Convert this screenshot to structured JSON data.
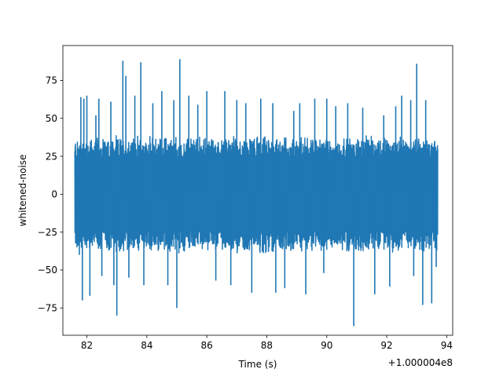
{
  "chart_data": {
    "type": "line",
    "title": "",
    "xlabel": "Time (s)",
    "ylabel": "whitened-noise",
    "x_offset_label": "+1.000004e8",
    "xlim": [
      81.2,
      94.2
    ],
    "ylim": [
      -93,
      98
    ],
    "x_ticks": [
      82,
      84,
      86,
      88,
      90,
      92,
      94
    ],
    "x_tick_labels": [
      "82",
      "84",
      "86",
      "88",
      "90",
      "92",
      "94"
    ],
    "y_ticks": [
      75,
      50,
      25,
      0,
      -25,
      -50,
      -75
    ],
    "y_tick_labels": [
      "75",
      "50",
      "25",
      "0",
      "−25",
      "−50",
      "−75"
    ],
    "grid": false,
    "series": [
      {
        "color": "#1f77b4",
        "x_start": 81.6,
        "x_end": 93.7,
        "band_upper": 35,
        "band_lower": -35,
        "peaks": [
          {
            "x": 81.7,
            "y": 23
          },
          {
            "x": 81.75,
            "y": -40
          },
          {
            "x": 81.8,
            "y": 64
          },
          {
            "x": 81.85,
            "y": -70
          },
          {
            "x": 81.9,
            "y": 63
          },
          {
            "x": 82.0,
            "y": 65
          },
          {
            "x": 82.1,
            "y": -67
          },
          {
            "x": 82.3,
            "y": 52
          },
          {
            "x": 82.4,
            "y": 63
          },
          {
            "x": 82.5,
            "y": -54
          },
          {
            "x": 82.8,
            "y": 61
          },
          {
            "x": 82.9,
            "y": -60
          },
          {
            "x": 83.0,
            "y": -80
          },
          {
            "x": 83.2,
            "y": 88
          },
          {
            "x": 83.3,
            "y": 78
          },
          {
            "x": 83.4,
            "y": -55
          },
          {
            "x": 83.6,
            "y": 65
          },
          {
            "x": 83.8,
            "y": 87
          },
          {
            "x": 83.9,
            "y": -60
          },
          {
            "x": 84.2,
            "y": 60
          },
          {
            "x": 84.5,
            "y": 68
          },
          {
            "x": 84.7,
            "y": -60
          },
          {
            "x": 84.9,
            "y": 62
          },
          {
            "x": 85.1,
            "y": 89
          },
          {
            "x": 85.0,
            "y": -75
          },
          {
            "x": 85.4,
            "y": 65
          },
          {
            "x": 85.7,
            "y": 59
          },
          {
            "x": 86.0,
            "y": 68
          },
          {
            "x": 86.3,
            "y": -57
          },
          {
            "x": 86.6,
            "y": 68
          },
          {
            "x": 86.8,
            "y": -60
          },
          {
            "x": 87.0,
            "y": 62
          },
          {
            "x": 87.3,
            "y": 60
          },
          {
            "x": 87.5,
            "y": -65
          },
          {
            "x": 87.8,
            "y": 63
          },
          {
            "x": 88.2,
            "y": 60
          },
          {
            "x": 88.3,
            "y": -65
          },
          {
            "x": 88.6,
            "y": -62
          },
          {
            "x": 88.9,
            "y": 55
          },
          {
            "x": 89.1,
            "y": 60
          },
          {
            "x": 89.3,
            "y": -66
          },
          {
            "x": 89.6,
            "y": 63
          },
          {
            "x": 89.9,
            "y": -52
          },
          {
            "x": 90.0,
            "y": 63
          },
          {
            "x": 90.3,
            "y": 58
          },
          {
            "x": 90.7,
            "y": 60
          },
          {
            "x": 90.9,
            "y": -87
          },
          {
            "x": 91.2,
            "y": 57
          },
          {
            "x": 91.6,
            "y": -66
          },
          {
            "x": 91.9,
            "y": 52
          },
          {
            "x": 92.1,
            "y": -61
          },
          {
            "x": 92.3,
            "y": 58
          },
          {
            "x": 92.5,
            "y": 65
          },
          {
            "x": 92.8,
            "y": 62
          },
          {
            "x": 92.9,
            "y": -54
          },
          {
            "x": 93.0,
            "y": 86
          },
          {
            "x": 93.2,
            "y": -73
          },
          {
            "x": 93.3,
            "y": 62
          },
          {
            "x": 93.5,
            "y": -72
          },
          {
            "x": 93.6,
            "y": 35
          },
          {
            "x": 93.65,
            "y": -48
          }
        ]
      }
    ]
  }
}
